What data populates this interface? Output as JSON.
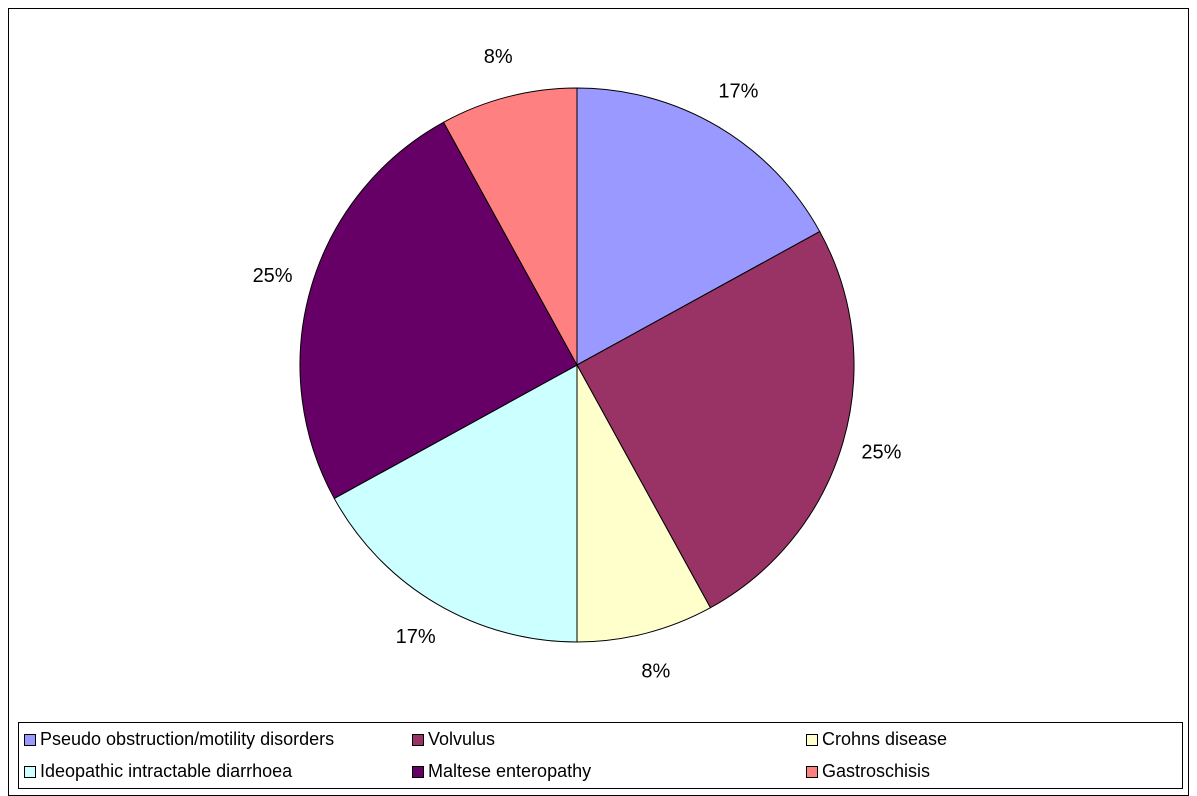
{
  "chart_data": {
    "type": "pie",
    "categories": [
      "Pseudo obstruction/motility disorders",
      "Volvulus",
      "Crohns disease",
      "Ideopathic intractable diarrhoea",
      "Maltese enteropathy",
      "Gastroschisis"
    ],
    "values": [
      17,
      25,
      8,
      17,
      25,
      8
    ],
    "value_labels": [
      "17%",
      "25%",
      "8%",
      "17%",
      "25%",
      "8%"
    ],
    "colors": [
      "#9999ff",
      "#993366",
      "#ffffcc",
      "#ccffff",
      "#660066",
      "#ff8080"
    ],
    "legend": "bottom"
  }
}
